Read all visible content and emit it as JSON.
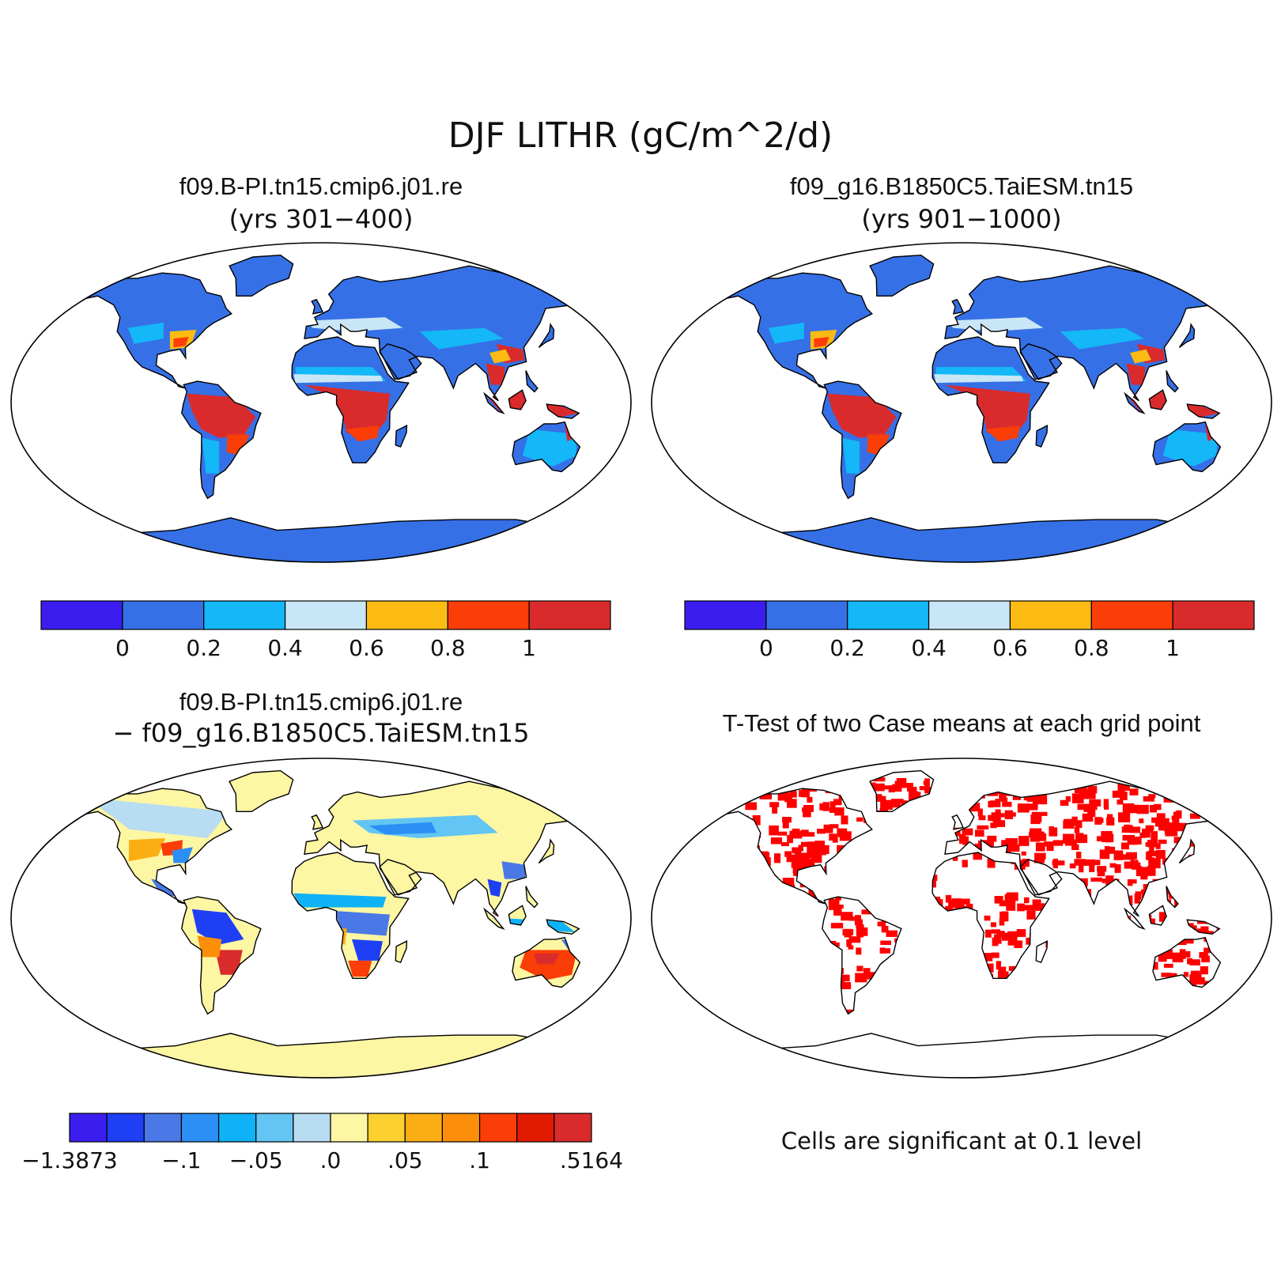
{
  "page": {
    "title": "DJF LITHR (gC/m^2/d)"
  },
  "panels": [
    {
      "case_name": "f09.B-PI.tn15.cmip6.j01.re",
      "subtitle": "(yrs 301−400)",
      "colorbar": {
        "colors": [
          "#3b1eef",
          "#3670e6",
          "#14b7f7",
          "#c9e6f6",
          "#fbbb13",
          "#fb3e07",
          "#d92b2c"
        ],
        "ticks": [
          "0",
          "0.2",
          "0.4",
          "0.6",
          "0.8",
          "1"
        ]
      }
    },
    {
      "case_name": "f09_g16.B1850C5.TaiESM.tn15",
      "subtitle": "(yrs 901−1000)",
      "colorbar": {
        "colors": [
          "#3b1eef",
          "#3670e6",
          "#14b7f7",
          "#c9e6f6",
          "#fbbb13",
          "#fb3e07",
          "#d92b2c"
        ],
        "ticks": [
          "0",
          "0.2",
          "0.4",
          "0.6",
          "0.8",
          "1"
        ]
      }
    },
    {
      "case_name": "f09.B-PI.tn15.cmip6.j01.re",
      "subtitle": "− f09_g16.B1850C5.TaiESM.tn15",
      "colorbar": {
        "colors": [
          "#3b1eef",
          "#1f3ff5",
          "#4a78e6",
          "#2b8ff5",
          "#10b2f7",
          "#62c5f3",
          "#b8dcf1",
          "#fdf6a3",
          "#fcd12f",
          "#fbae14",
          "#fb8f0a",
          "#fb3e07",
          "#e21a00",
          "#d92b2c"
        ],
        "ticks": [
          "−1.3873",
          "−.1",
          "−.05",
          ".0",
          ".05",
          ".1",
          ".5164"
        ]
      }
    },
    {
      "case_name": "T-Test of two Case means at each grid point",
      "note": "Cells are significant at 0.1 level",
      "color": "#ff0000"
    }
  ]
}
